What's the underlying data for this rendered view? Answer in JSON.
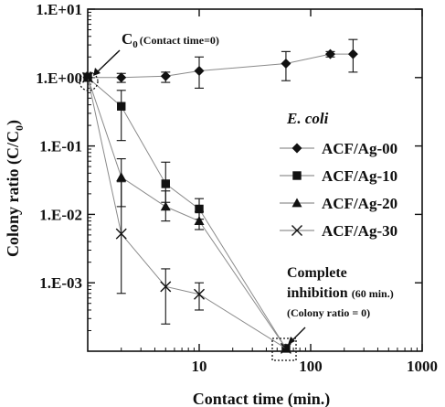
{
  "chart_data": {
    "type": "scatter",
    "xlabel": "Contact time (min.)",
    "ylabel": "Colony ratio (C/C",
    "ylabel_sub": "0",
    "ylabel_close": ")",
    "x_scale": "log",
    "y_scale": "log",
    "xlim": [
      1,
      1000
    ],
    "ylim": [
      0.0001,
      10
    ],
    "x_ticks": [
      "10",
      "100",
      "1000"
    ],
    "y_ticks": [
      "1.E+01",
      "1.E+00",
      "1.E-01",
      "1.E-02",
      "1.E-03"
    ],
    "grid": false,
    "legend": {
      "title": "E. coli",
      "placement": "right"
    },
    "series": [
      {
        "name": "ACF/Ag-00",
        "marker": "diamond",
        "x": [
          1,
          2,
          5,
          10,
          60,
          150,
          240
        ],
        "y": [
          1.0,
          1.0,
          1.05,
          1.25,
          1.6,
          2.2,
          2.2
        ],
        "err_low": [
          0.88,
          0.85,
          0.85,
          0.7,
          0.9,
          2.0,
          1.2
        ],
        "err_high": [
          1.15,
          1.15,
          1.2,
          2.0,
          2.4,
          2.4,
          3.6
        ]
      },
      {
        "name": "ACF/Ag-10",
        "marker": "square",
        "x": [
          1,
          2,
          5,
          10,
          60
        ],
        "y": [
          1.0,
          0.38,
          0.028,
          0.012,
          0.00011
        ],
        "err_low": [
          0.88,
          0.12,
          0.015,
          0.0085,
          null
        ],
        "err_high": [
          1.15,
          0.65,
          0.058,
          0.017,
          null
        ]
      },
      {
        "name": "ACF/Ag-20",
        "marker": "triangle",
        "x": [
          1,
          2,
          5,
          10,
          60
        ],
        "y": [
          1.0,
          0.035,
          0.013,
          0.008,
          0.00011
        ],
        "err_low": [
          0.88,
          0.013,
          0.008,
          0.006,
          null
        ],
        "err_high": [
          1.15,
          0.065,
          0.022,
          0.011,
          null
        ]
      },
      {
        "name": "ACF/Ag-30",
        "marker": "x",
        "x": [
          1,
          2,
          5,
          10,
          60
        ],
        "y": [
          1.0,
          0.0052,
          0.00088,
          0.00068,
          0.00011
        ],
        "err_low": [
          0.88,
          0.0007,
          0.00025,
          0.0004,
          null
        ],
        "err_high": [
          1.15,
          0.03,
          0.0016,
          0.001,
          null
        ]
      }
    ],
    "annotations": {
      "c0_main": "C",
      "c0_sub": "0",
      "c0_detail": "(Contact time=0)",
      "complete_line1": "Complete",
      "complete_line2": "inhibition",
      "complete_detail": "(60 min.)",
      "complete_line3": "(Colony ratio = 0)"
    }
  }
}
